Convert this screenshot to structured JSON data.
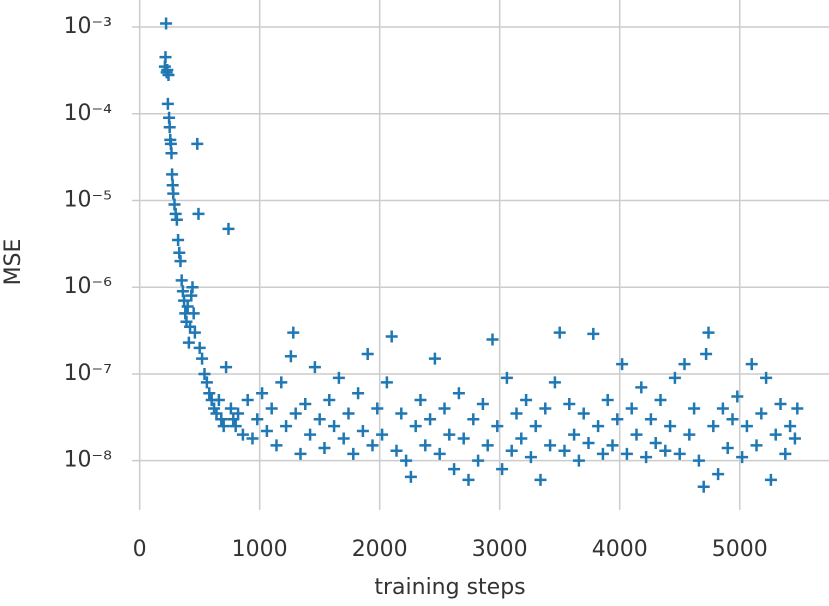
{
  "chart_data": {
    "type": "scatter",
    "marker": "+",
    "color": "#1f77b4",
    "grid": true,
    "yscale": "log",
    "xlabel": "training steps",
    "ylabel": "MSE",
    "xlim": [
      -64,
      5744
    ],
    "ylim": [
      2.7e-09,
      0.00205
    ],
    "xticks": [
      0,
      1000,
      2000,
      3000,
      4000,
      5000
    ],
    "yticks": [
      {
        "value": 1e-08,
        "label": "10⁻⁸"
      },
      {
        "value": 1e-07,
        "label": "10⁻⁷"
      },
      {
        "value": 1e-06,
        "label": "10⁻⁶"
      },
      {
        "value": 1e-05,
        "label": "10⁻⁵"
      },
      {
        "value": 0.0001,
        "label": "10⁻⁴"
      },
      {
        "value": 0.001,
        "label": "10⁻³"
      }
    ],
    "x": [
      220,
      215,
      210,
      225,
      230,
      240,
      235,
      245,
      250,
      255,
      260,
      265,
      270,
      275,
      280,
      290,
      300,
      310,
      320,
      330,
      340,
      350,
      360,
      370,
      380,
      390,
      400,
      410,
      420,
      430,
      440,
      450,
      460,
      480,
      490,
      500,
      520,
      540,
      560,
      580,
      600,
      620,
      640,
      660,
      680,
      700,
      720,
      740,
      760,
      780,
      800,
      820,
      860,
      900,
      940,
      980,
      1020,
      1060,
      1100,
      1140,
      1180,
      1220,
      1260,
      1280,
      1300,
      1340,
      1380,
      1420,
      1460,
      1500,
      1540,
      1580,
      1620,
      1660,
      1700,
      1740,
      1780,
      1820,
      1860,
      1900,
      1940,
      1980,
      2020,
      2060,
      2100,
      2140,
      2180,
      2220,
      2260,
      2300,
      2340,
      2380,
      2420,
      2460,
      2500,
      2540,
      2580,
      2620,
      2660,
      2700,
      2740,
      2780,
      2820,
      2860,
      2900,
      2940,
      2980,
      3020,
      3060,
      3100,
      3140,
      3180,
      3220,
      3260,
      3300,
      3340,
      3380,
      3420,
      3460,
      3500,
      3540,
      3580,
      3620,
      3660,
      3700,
      3740,
      3780,
      3820,
      3860,
      3900,
      3940,
      3980,
      4020,
      4060,
      4100,
      4140,
      4180,
      4220,
      4260,
      4300,
      4340,
      4380,
      4420,
      4460,
      4500,
      4540,
      4580,
      4620,
      4660,
      4700,
      4720,
      4740,
      4780,
      4820,
      4860,
      4900,
      4940,
      4980,
      5020,
      5060,
      5100,
      5140,
      5180,
      5220,
      5260,
      5300,
      5340,
      5380,
      5420,
      5460,
      5480
    ],
    "values": [
      0.0011,
      0.00045,
      0.00035,
      0.0003,
      0.00032,
      0.00028,
      0.00013,
      9e-05,
      7e-05,
      5e-05,
      4.5e-05,
      3.5e-05,
      2e-05,
      1.5e-05,
      1.2e-05,
      9e-06,
      7e-06,
      6e-06,
      3.5e-06,
      2.5e-06,
      2e-06,
      1.2e-06,
      9e-07,
      7e-07,
      5e-07,
      4e-07,
      6e-07,
      2.3e-07,
      3.5e-07,
      8e-07,
      1e-06,
      5e-07,
      3e-07,
      4.5e-05,
      7e-06,
      2e-07,
      1.5e-07,
      1e-07,
      8e-08,
      6e-08,
      5e-08,
      4e-08,
      3.5e-08,
      5e-08,
      3e-08,
      2.5e-08,
      1.2e-07,
      4.7e-06,
      4e-08,
      3e-08,
      2.5e-08,
      3.5e-08,
      2e-08,
      5e-08,
      1.8e-08,
      3e-08,
      6e-08,
      2.2e-08,
      4e-08,
      1.5e-08,
      8e-08,
      2.5e-08,
      1.6e-07,
      3e-07,
      3.5e-08,
      1.2e-08,
      4.5e-08,
      2e-08,
      1.2e-07,
      3e-08,
      1.4e-08,
      5e-08,
      2.5e-08,
      9e-08,
      1.8e-08,
      3.5e-08,
      1.2e-08,
      6e-08,
      2.2e-08,
      1.7e-07,
      1.5e-08,
      4e-08,
      2e-08,
      8e-08,
      2.7e-07,
      1.3e-08,
      3.5e-08,
      1e-08,
      6.5e-09,
      2.5e-08,
      5e-08,
      1.5e-08,
      3e-08,
      1.5e-07,
      1.2e-08,
      4e-08,
      2e-08,
      8e-09,
      6e-08,
      1.8e-08,
      6e-09,
      3e-08,
      1e-08,
      4.5e-08,
      1.5e-08,
      2.5e-07,
      2.5e-08,
      8e-09,
      9e-08,
      1.3e-08,
      3.5e-08,
      1.8e-08,
      5e-08,
      1.1e-08,
      2.5e-08,
      6e-09,
      4e-08,
      1.5e-08,
      8e-08,
      3e-07,
      1.3e-08,
      4.5e-08,
      2e-08,
      1e-08,
      3.5e-08,
      1.6e-08,
      2.9e-07,
      2.5e-08,
      1.2e-08,
      5e-08,
      1.5e-08,
      3e-08,
      1.3e-07,
      1.2e-08,
      4e-08,
      2e-08,
      7e-08,
      1.1e-08,
      3e-08,
      1.6e-08,
      5e-08,
      1.3e-08,
      2.5e-08,
      9e-08,
      1.2e-08,
      1.3e-07,
      2e-08,
      4e-08,
      1e-08,
      5e-09,
      1.7e-07,
      3e-07,
      2.5e-08,
      7e-09,
      4e-08,
      1.4e-08,
      3e-08,
      5.5e-08,
      1.1e-08,
      2.5e-08,
      1.3e-07,
      1.5e-08,
      3.5e-08,
      9e-08,
      6e-09,
      2e-08,
      4.5e-08,
      1.2e-08,
      2.5e-08,
      1.8e-08,
      4e-08
    ]
  }
}
